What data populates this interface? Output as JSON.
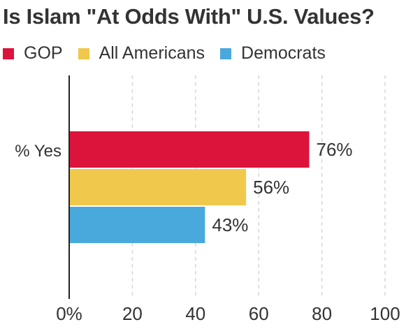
{
  "chart_data": {
    "type": "bar",
    "orientation": "horizontal",
    "title": "Is Islam \"At Odds With\" U.S. Values?",
    "categories": [
      "% Yes"
    ],
    "series": [
      {
        "name": "GOP",
        "color": "#dc143c",
        "values": [
          76
        ],
        "label": "76%"
      },
      {
        "name": "All Americans",
        "color": "#f0c84b",
        "values": [
          56
        ],
        "label": "56%"
      },
      {
        "name": "Democrats",
        "color": "#4aa9dc",
        "values": [
          43
        ],
        "label": "43%"
      }
    ],
    "xlim": [
      0,
      100
    ],
    "xticks": [
      0,
      20,
      40,
      60,
      80,
      100
    ],
    "xtick_labels": [
      "0%",
      "20",
      "40",
      "60",
      "80",
      "100"
    ],
    "grid": "vertical dashed",
    "legend": "top"
  }
}
